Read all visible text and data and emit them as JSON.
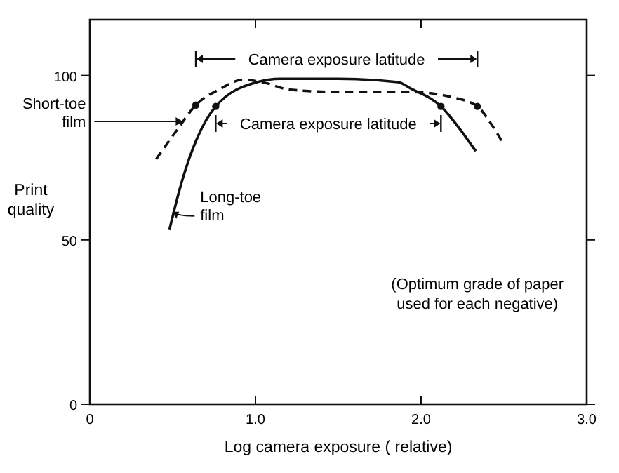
{
  "chart_data": {
    "type": "line",
    "xlabel": "Log camera exposure ( relative)",
    "ylabel": "Print quality",
    "xlim": [
      0,
      3
    ],
    "ylim": [
      0,
      117
    ],
    "xticks": [
      0,
      {
        "value": 1,
        "label": "1.0"
      },
      {
        "value": 2,
        "label": "2.0"
      },
      {
        "value": 3,
        "label": "3.0"
      }
    ],
    "yticks": [
      0,
      50,
      100
    ],
    "series": [
      {
        "name": "Short-toe film",
        "color": "#111111",
        "line_style": "dashed",
        "x": [
          0.4,
          0.52,
          0.64,
          0.79,
          0.92,
          1.04,
          1.21,
          1.5,
          1.94,
          2.17,
          2.34,
          2.42,
          2.5
        ],
        "values": [
          74.5,
          83,
          91,
          96,
          98.7,
          98,
          95.7,
          95,
          95,
          93.6,
          90.6,
          85.5,
          79
        ]
      },
      {
        "name": "Long-toe film",
        "color": "#111111",
        "line_style": "solid",
        "x": [
          0.48,
          0.56,
          0.64,
          0.76,
          1.01,
          1.15,
          1.5,
          1.86,
          1.94,
          2.12,
          2.23,
          2.33
        ],
        "values": [
          53,
          68.5,
          80,
          90.6,
          98,
          99,
          99,
          98,
          96,
          90.6,
          84,
          77
        ]
      },
      {
        "type": "scatter",
        "color": "#111111",
        "marker": "circle",
        "x": [
          0.64,
          2.34
        ],
        "values": [
          91,
          90.6
        ]
      },
      {
        "type": "scatter",
        "color": "#111111",
        "marker": "circle",
        "x": [
          0.76,
          2.12
        ],
        "values": [
          90.6,
          90.6
        ]
      }
    ],
    "annotations": [
      "Camera exposure latitude",
      "Camera exposure latitude",
      "(Optimum grade of paper used for each negative)"
    ]
  }
}
